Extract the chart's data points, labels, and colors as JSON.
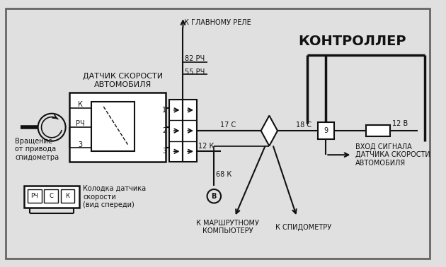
{
  "bg_color": "#e0e0e0",
  "line_color": "#111111",
  "title_controller": "КОНТРОЛЛЕР",
  "label_sensor": "ДАТЧИК СКОРОСТИ\nАВТОМОБИЛЯ",
  "label_rotation": "Вращение\nот привода\nспидометра",
  "label_relay": "К ГЛАВНОМУ РЕЛЕ",
  "label_82": "82 РЧ",
  "label_55": "55 РЧ",
  "label_17": "17 С",
  "label_18": "18 С",
  "label_12k": "12 К",
  "label_68k": "68 К",
  "label_K": "К",
  "label_RCH": "РЧ",
  "label_3_pin": "3",
  "label_pin1": "1",
  "label_pin2": "2",
  "label_pin3": "3",
  "label_9": "9",
  "label_12v": "12 В",
  "label_connector": "Колодка датчика\nскорости\n(вид спереди)",
  "label_rch_c_k": [
    "РЧ",
    "С",
    "К"
  ],
  "label_computer": "К МАРШРУТНОМУ\nКОМПЬЮТЕРУ",
  "label_speedo": "К СПИДОМЕТРУ",
  "label_input": "ВХОД СИГНАЛА\nДАТЧИКА СКОРОСТИ\nАВТОМОБИЛЯ",
  "font_size_tiny": 6,
  "font_size_small": 7,
  "font_size_medium": 8,
  "font_size_large": 14
}
